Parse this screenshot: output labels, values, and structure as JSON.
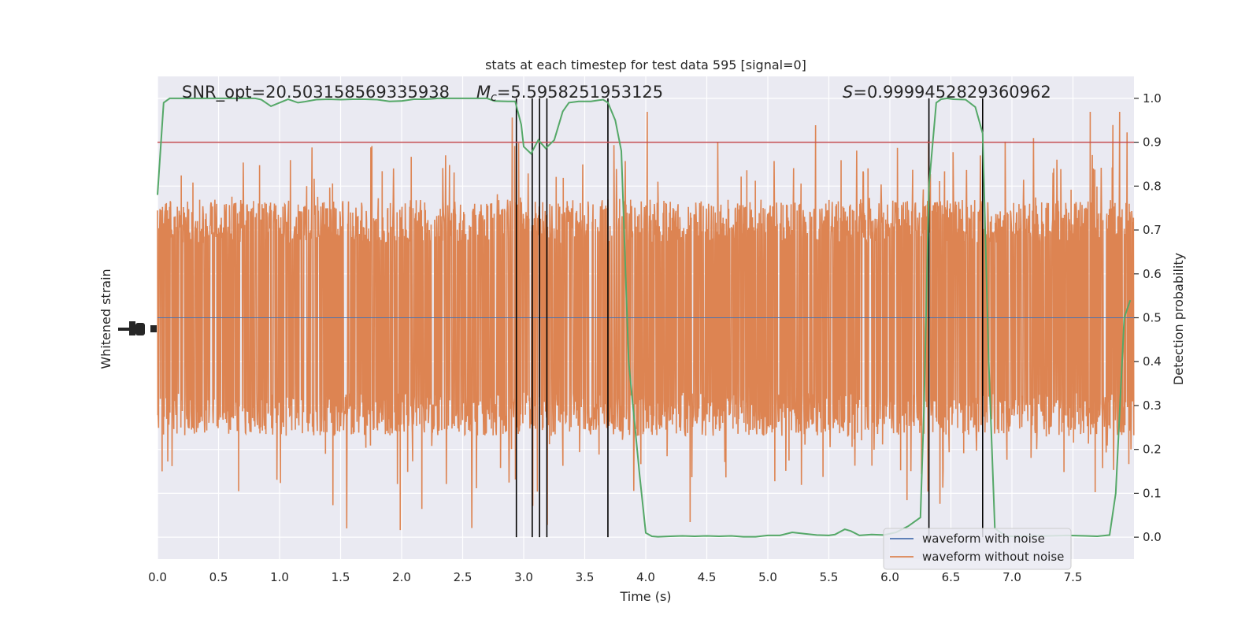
{
  "chart_data": {
    "type": "line",
    "title": "stats at each timestep for test data 595 [signal=0]",
    "xlabel": "Time (s)",
    "ylabel_left": "Whitened strain",
    "ylabel_right": "Detection probability",
    "xlim": [
      0,
      8
    ],
    "ylim_right": [
      -0.05,
      1.05
    ],
    "x_ticks": [
      "0.0",
      "0.5",
      "1.0",
      "1.5",
      "2.0",
      "2.5",
      "3.0",
      "3.5",
      "4.0",
      "4.5",
      "5.0",
      "5.5",
      "6.0",
      "6.5",
      "7.0",
      "7.5"
    ],
    "x_tick_values": [
      0,
      0.5,
      1,
      1.5,
      2,
      2.5,
      3,
      3.5,
      4,
      4.5,
      5,
      5.5,
      6,
      6.5,
      7,
      7.5
    ],
    "y_right_ticks": [
      "0.0",
      "0.1",
      "0.2",
      "0.3",
      "0.4",
      "0.5",
      "0.6",
      "0.7",
      "0.8",
      "0.9",
      "1.0"
    ],
    "y_right_tick_values": [
      0,
      0.1,
      0.2,
      0.3,
      0.4,
      0.5,
      0.6,
      0.7,
      0.8,
      0.9,
      1.0
    ],
    "threshold": 0.9,
    "annotations": {
      "snr": "SNR_opt=20.503158569335938",
      "mc_symbol": "M",
      "mc_sub": "c",
      "mc_value": "=5.5958251953125",
      "s_symbol": "S",
      "s_value": "=0.9999452829360962"
    },
    "vlines": [
      2.94,
      3.07,
      3.13,
      3.19,
      3.69,
      6.32,
      6.76
    ],
    "legend": {
      "position": "lower-right",
      "entries": [
        {
          "label": "waveform with noise",
          "color": "#4c72b0"
        },
        {
          "label": "waveform without noise",
          "color": "#dd8452"
        }
      ]
    },
    "series": [
      {
        "name": "Detection probability",
        "color": "#55a868",
        "x": [
          0.0,
          0.05,
          0.1,
          0.2,
          0.3,
          0.4,
          0.5,
          0.6,
          0.7,
          0.8,
          0.85,
          0.93,
          1.0,
          1.07,
          1.15,
          1.2,
          1.3,
          1.4,
          1.5,
          1.6,
          1.7,
          1.8,
          1.9,
          2.0,
          2.1,
          2.2,
          2.3,
          2.4,
          2.5,
          2.6,
          2.7,
          2.76,
          2.87,
          2.93,
          2.98,
          3.0,
          3.06,
          3.12,
          3.18,
          3.25,
          3.32,
          3.37,
          3.45,
          3.55,
          3.65,
          3.69,
          3.75,
          3.8,
          3.86,
          3.95,
          4.0,
          4.05,
          4.1,
          4.2,
          4.3,
          4.4,
          4.5,
          4.6,
          4.7,
          4.8,
          4.9,
          5.0,
          5.1,
          5.2,
          5.3,
          5.4,
          5.5,
          5.55,
          5.63,
          5.68,
          5.75,
          5.85,
          5.95,
          6.05,
          6.15,
          6.25,
          6.28,
          6.32,
          6.38,
          6.42,
          6.47,
          6.52,
          6.62,
          6.7,
          6.76,
          6.81,
          6.86,
          6.95,
          7.05,
          7.15,
          7.3,
          7.45,
          7.6,
          7.7,
          7.8,
          7.85,
          7.92,
          7.97
        ],
        "y": [
          0.78,
          0.99,
          1.0,
          1.0,
          1.0,
          1.0,
          1.0,
          1.0,
          1.0,
          1.0,
          0.997,
          0.982,
          0.99,
          0.998,
          0.99,
          0.992,
          0.997,
          0.998,
          0.997,
          0.998,
          0.998,
          0.997,
          0.993,
          0.994,
          0.998,
          0.998,
          1.0,
          1.0,
          1.0,
          1.0,
          1.0,
          0.994,
          0.993,
          0.993,
          0.94,
          0.89,
          0.874,
          0.905,
          0.886,
          0.905,
          0.97,
          0.99,
          0.993,
          0.993,
          0.997,
          0.99,
          0.95,
          0.88,
          0.4,
          0.14,
          0.01,
          0.002,
          0.001,
          0.002,
          0.003,
          0.002,
          0.003,
          0.002,
          0.003,
          0.001,
          0.001,
          0.004,
          0.004,
          0.011,
          0.008,
          0.005,
          0.004,
          0.006,
          0.018,
          0.014,
          0.004,
          0.006,
          0.005,
          0.011,
          0.025,
          0.045,
          0.3,
          0.8,
          0.99,
          0.998,
          1.0,
          0.998,
          0.997,
          0.98,
          0.92,
          0.4,
          0.02,
          0.002,
          0.002,
          0.003,
          0.003,
          0.004,
          0.003,
          0.002,
          0.005,
          0.1,
          0.5,
          0.54
        ]
      }
    ]
  }
}
